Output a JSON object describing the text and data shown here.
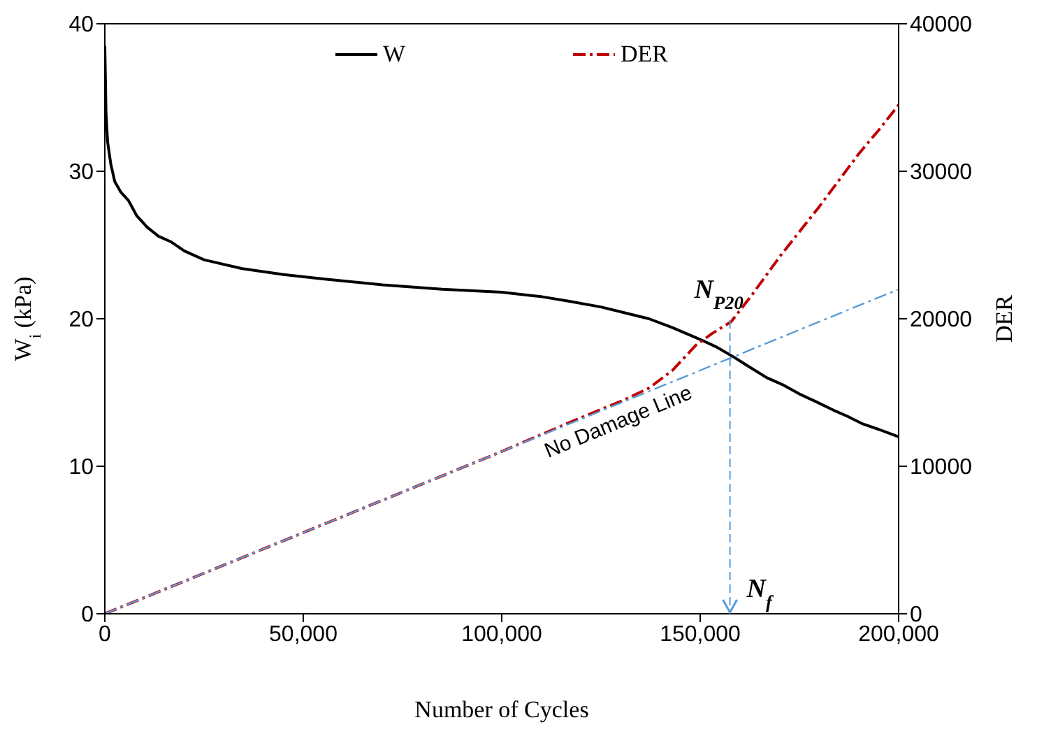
{
  "chart_data": {
    "type": "line",
    "xlabel": "Number of Cycles",
    "ylabel": "W$_{i}$ (kPa)",
    "y2label": "DER",
    "xlim": [
      0,
      200000
    ],
    "xticks": [
      0,
      {
        "value": 50000,
        "label": "50,000"
      },
      {
        "value": 100000,
        "label": "100,000"
      },
      {
        "value": 150000,
        "label": "150,000"
      },
      {
        "value": 200000,
        "label": "200,000"
      }
    ],
    "ylim": [
      0,
      40
    ],
    "yticks": [
      0,
      10,
      20,
      30,
      40
    ],
    "y2lim": [
      0,
      40000
    ],
    "y2ticks": [
      0,
      10000,
      20000,
      30000,
      40000
    ],
    "grid": false,
    "legend": "top",
    "marker": "none",
    "series": [
      {
        "name": "W",
        "color": "#000000",
        "line_style": "solid",
        "x": [
          0,
          300,
          700,
          1500,
          2500,
          4000,
          6000,
          8000,
          10700,
          13500,
          16800,
          20000,
          25000,
          34600,
          45000,
          55000,
          70000,
          85000,
          100000,
          110000,
          116800,
          125000,
          131000,
          137100,
          143000,
          150000,
          154000,
          158500,
          162000,
          166800,
          171000,
          175000,
          179000,
          183600,
          187000,
          190700,
          195000,
          200000
        ],
        "values": [
          38.5,
          34,
          32,
          30.5,
          29.3,
          28.6,
          28,
          27,
          26.2,
          25.6,
          25.2,
          24.6,
          24,
          23.4,
          23,
          22.7,
          22.3,
          22,
          21.8,
          21.5,
          21.2,
          20.8,
          20.4,
          20,
          19.4,
          18.6,
          18.1,
          17.4,
          16.8,
          16,
          15.5,
          14.9,
          14.4,
          13.8,
          13.4,
          12.9,
          12.5,
          12
        ]
      },
      {
        "name": "DER",
        "color": "#c00000",
        "line_style": "dashed",
        "axis": "y2",
        "x": [
          0,
          50000,
          100000,
          120000,
          130000,
          137100,
          143000,
          148900,
          153000,
          157800,
          163000,
          170300,
          175000,
          180000,
          185000,
          190000,
          195000,
          200000
        ],
        "values": [
          0,
          5500,
          11000,
          13300,
          14400,
          15300,
          16500,
          18200,
          19000,
          19800,
          21600,
          24300,
          25900,
          27600,
          29400,
          31200,
          32800,
          34500
        ]
      },
      {
        "color": "#5b9bd5",
        "line_style": "dashed",
        "axis": "y2",
        "x": [
          0,
          200000
        ],
        "values": [
          0,
          22000
        ]
      }
    ],
    "annotations": [
      {
        "text": "N$_{P20}$",
        "x": 157500,
        "y": 19.9
      },
      {
        "text": "No Damage Line",
        "x": 130000,
        "y": 14.3
      }
    ],
    "ref_lines": [
      {
        "axis": "x",
        "value": 157500,
        "label": "N$_{f}$",
        "color": "#5b9bd5",
        "line_style": "dashed"
      }
    ]
  }
}
